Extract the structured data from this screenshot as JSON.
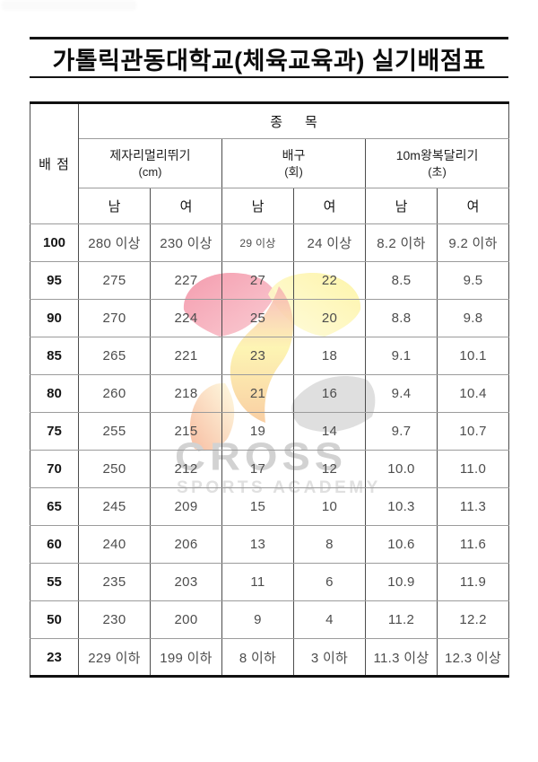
{
  "title": "가톨릭관동대학교(체육교육과) 실기배점표",
  "table": {
    "corner_header": "배 점",
    "group_header": "종      목",
    "events": [
      {
        "name": "제자리멀리뛰기",
        "unit": "(cm)"
      },
      {
        "name": "배구",
        "unit": "(회)"
      },
      {
        "name": "10m왕복달리기",
        "unit": "(초)"
      }
    ],
    "gender_headers": [
      "남",
      "여",
      "남",
      "여",
      "남",
      "여"
    ],
    "rows": [
      {
        "score": "100",
        "values": [
          "280 이상",
          "230 이상",
          "29 이상",
          "24 이상",
          "8.2 이하",
          "9.2 이하"
        ]
      },
      {
        "score": "95",
        "values": [
          "275",
          "227",
          "27",
          "22",
          "8.5",
          "9.5"
        ]
      },
      {
        "score": "90",
        "values": [
          "270",
          "224",
          "25",
          "20",
          "8.8",
          "9.8"
        ]
      },
      {
        "score": "85",
        "values": [
          "265",
          "221",
          "23",
          "18",
          "9.1",
          "10.1"
        ]
      },
      {
        "score": "80",
        "values": [
          "260",
          "218",
          "21",
          "16",
          "9.4",
          "10.4"
        ]
      },
      {
        "score": "75",
        "values": [
          "255",
          "215",
          "19",
          "14",
          "9.7",
          "10.7"
        ]
      },
      {
        "score": "70",
        "values": [
          "250",
          "212",
          "17",
          "12",
          "10.0",
          "11.0"
        ]
      },
      {
        "score": "65",
        "values": [
          "245",
          "209",
          "15",
          "10",
          "10.3",
          "11.3"
        ]
      },
      {
        "score": "60",
        "values": [
          "240",
          "206",
          "13",
          "8",
          "10.6",
          "11.6"
        ]
      },
      {
        "score": "55",
        "values": [
          "235",
          "203",
          "11",
          "6",
          "10.9",
          "11.9"
        ]
      },
      {
        "score": "50",
        "values": [
          "230",
          "200",
          "9",
          "4",
          "11.2",
          "12.2"
        ]
      },
      {
        "score": "23",
        "values": [
          "229 이하",
          "199 이하",
          "8 이하",
          "3 이하",
          "11.3 이상",
          "12.3 이상"
        ]
      }
    ]
  },
  "watermark": {
    "line1": "CROSS",
    "line2": "SPORTS ACADEMY",
    "colors": {
      "pink": "#f6a8b6",
      "pink_deep": "#f28ba0",
      "yellow": "#fdf5ac",
      "yellow_pale": "#fefbda",
      "orange": "#f8c693",
      "gray": "#dcdcdc",
      "text_gray": "#d2d2d2"
    }
  }
}
